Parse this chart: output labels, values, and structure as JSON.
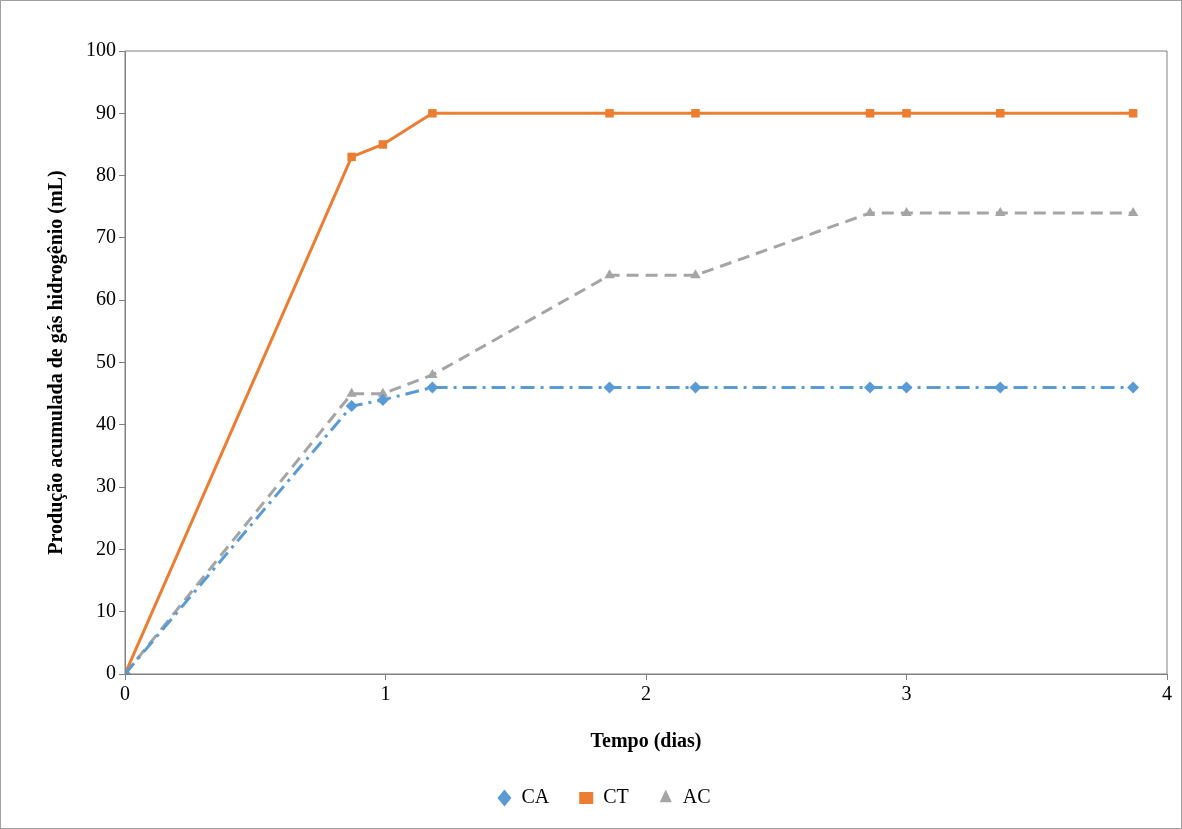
{
  "chart_data": {
    "type": "line",
    "xlabel": "Tempo (dias)",
    "ylabel": "Produção acumulada de gás hidrogênio (mL)",
    "x": [
      0,
      0.87,
      0.99,
      1.18,
      1.86,
      2.19,
      2.86,
      3.0,
      3.36,
      3.87
    ],
    "series": [
      {
        "name": "CA",
        "color": "#5b9bd5",
        "marker": "diamond",
        "line_style": "dashdot",
        "values": [
          0,
          43,
          44,
          46,
          46,
          46,
          46,
          46,
          46,
          46
        ]
      },
      {
        "name": "CT",
        "color": "#ed7d31",
        "marker": "square",
        "line_style": "solid",
        "values": [
          0,
          83,
          85,
          90,
          90,
          90,
          90,
          90,
          90,
          90
        ]
      },
      {
        "name": "AC",
        "color": "#a5a5a5",
        "marker": "triangle",
        "line_style": "dashed",
        "values": [
          0,
          45,
          45,
          48,
          64,
          64,
          74,
          74,
          74,
          74
        ]
      }
    ],
    "xlim": [
      0,
      4
    ],
    "xticks": [
      0,
      1,
      2,
      3,
      4
    ],
    "ylim": [
      0,
      100
    ],
    "yticks": [
      0,
      10,
      20,
      30,
      40,
      50,
      60,
      70,
      80,
      90,
      100
    ],
    "grid": false,
    "legend": "bottom"
  }
}
